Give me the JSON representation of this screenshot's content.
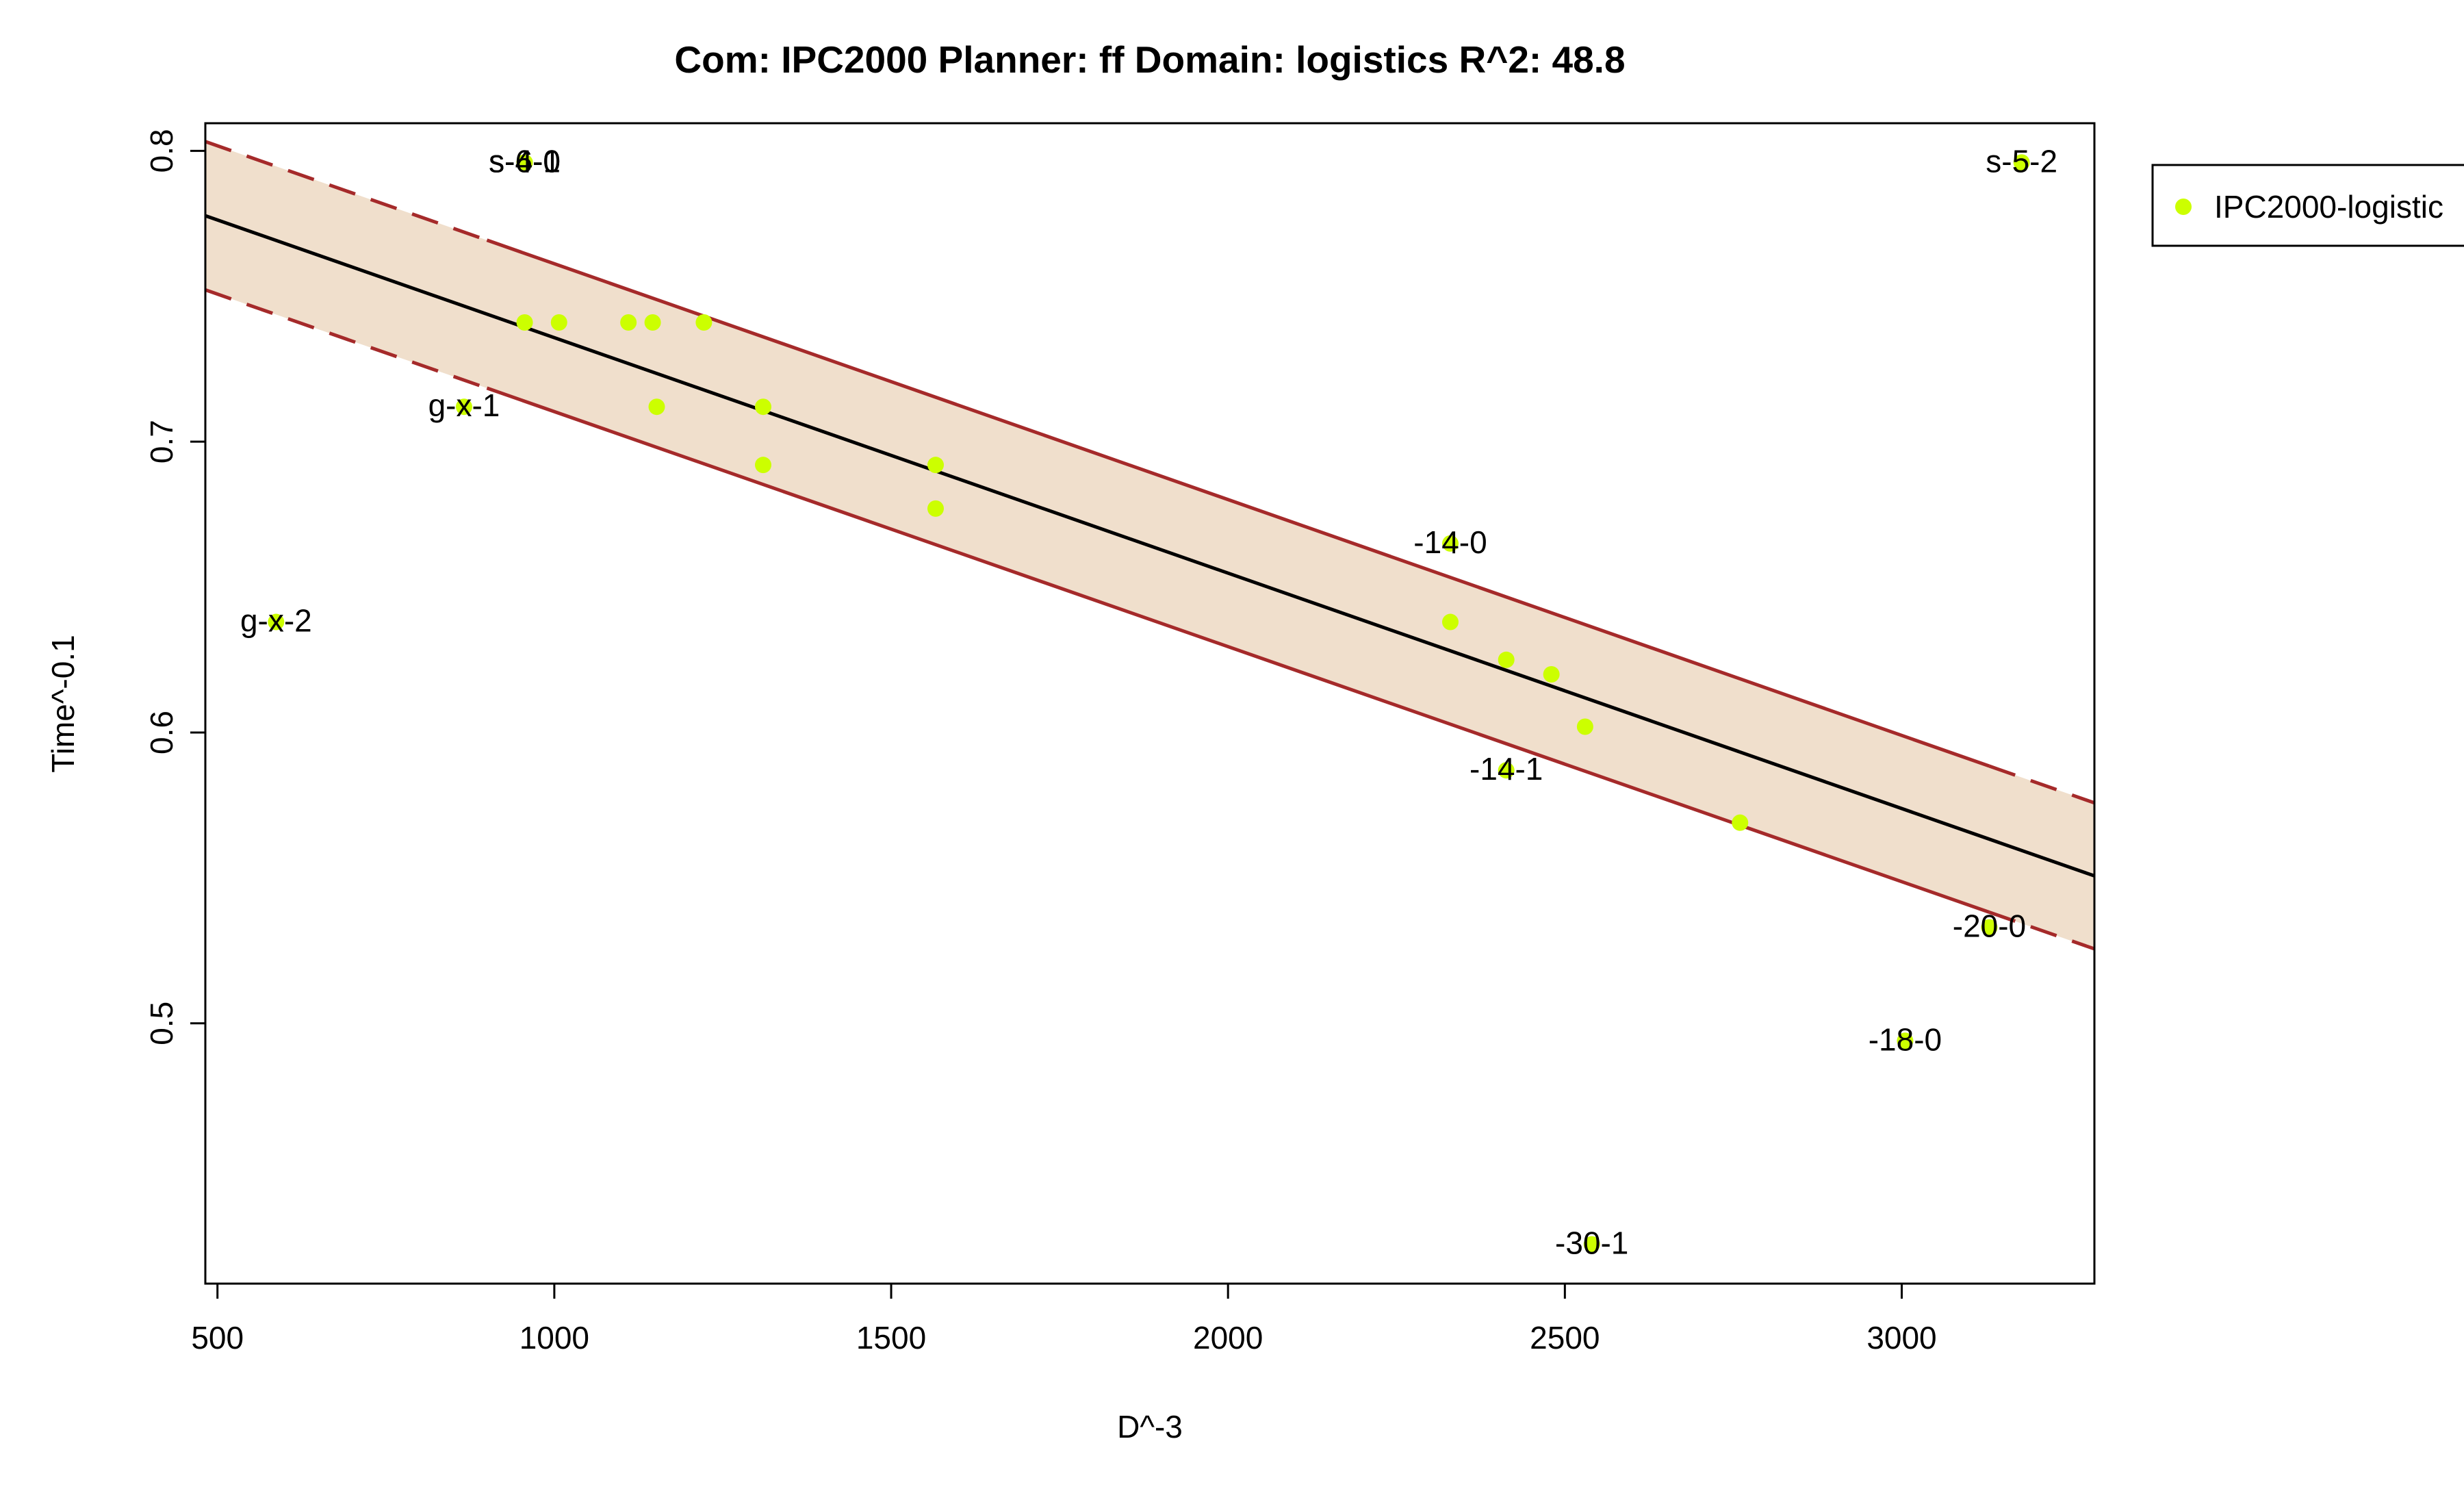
{
  "chart_data": {
    "type": "scatter",
    "title": "Com: IPC2000 Planner: ff Domain: logistics R^2: 48.8",
    "xlabel": "D^-3",
    "ylabel": "Time^-0.1",
    "xlim": [
      482,
      3286
    ],
    "ylim": [
      0.4105,
      0.8095
    ],
    "x_ticks": [
      500,
      1000,
      1500,
      2000,
      2500,
      3000
    ],
    "y_ticks": [
      0.5,
      0.6,
      0.7,
      0.8
    ],
    "grid": false,
    "legend": {
      "position": "right",
      "entries": [
        "IPC2000-logistic"
      ]
    },
    "colors": {
      "points": "#ccff00",
      "fit_line": "#000000",
      "band_fill": "#f0dfcc",
      "band_line": "#a52a2a",
      "frame": "#000000"
    },
    "series": [
      {
        "name": "IPC2000-logistic",
        "points": [
          {
            "x": 587,
            "y": 0.638,
            "label": "g-x-2"
          },
          {
            "x": 866,
            "y": 0.712,
            "label": "g-x-1"
          },
          {
            "x": 956,
            "y": 0.796,
            "label": "s-6-0"
          },
          {
            "x": 956,
            "y": 0.796,
            "label": "s-4-1"
          },
          {
            "x": 956,
            "y": 0.796,
            "label": "s-4-0"
          },
          {
            "x": 956,
            "y": 0.741,
            "label": ""
          },
          {
            "x": 1007,
            "y": 0.741,
            "label": ""
          },
          {
            "x": 1110,
            "y": 0.741,
            "label": ""
          },
          {
            "x": 1146,
            "y": 0.741,
            "label": ""
          },
          {
            "x": 1222,
            "y": 0.741,
            "label": ""
          },
          {
            "x": 1152,
            "y": 0.712,
            "label": ""
          },
          {
            "x": 1310,
            "y": 0.712,
            "label": ""
          },
          {
            "x": 1310,
            "y": 0.692,
            "label": ""
          },
          {
            "x": 1566,
            "y": 0.692,
            "label": ""
          },
          {
            "x": 1566,
            "y": 0.677,
            "label": ""
          },
          {
            "x": 2330,
            "y": 0.665,
            "label": "-14-0"
          },
          {
            "x": 2330,
            "y": 0.638,
            "label": ""
          },
          {
            "x": 2413,
            "y": 0.625,
            "label": ""
          },
          {
            "x": 2480,
            "y": 0.62,
            "label": ""
          },
          {
            "x": 2530,
            "y": 0.602,
            "label": ""
          },
          {
            "x": 2413,
            "y": 0.587,
            "label": "-14-1"
          },
          {
            "x": 2760,
            "y": 0.569,
            "label": ""
          },
          {
            "x": 3130,
            "y": 0.533,
            "label": "-20-0"
          },
          {
            "x": 3005,
            "y": 0.494,
            "label": "-18-0"
          },
          {
            "x": 2540,
            "y": 0.424,
            "label": "-30-1"
          },
          {
            "x": 3178,
            "y": 0.796,
            "label": "s-5-2"
          }
        ]
      }
    ],
    "fit_line": {
      "x": [
        482,
        3286
      ],
      "y": [
        0.7777,
        0.5507
      ]
    },
    "band_upper": {
      "x": [
        482,
        3286
      ],
      "y": [
        0.8032,
        0.5758
      ]
    },
    "band_lower": {
      "x": [
        482,
        3286
      ],
      "y": [
        0.7522,
        0.5256
      ]
    },
    "band_solid_range": [
      900,
      3130
    ]
  }
}
